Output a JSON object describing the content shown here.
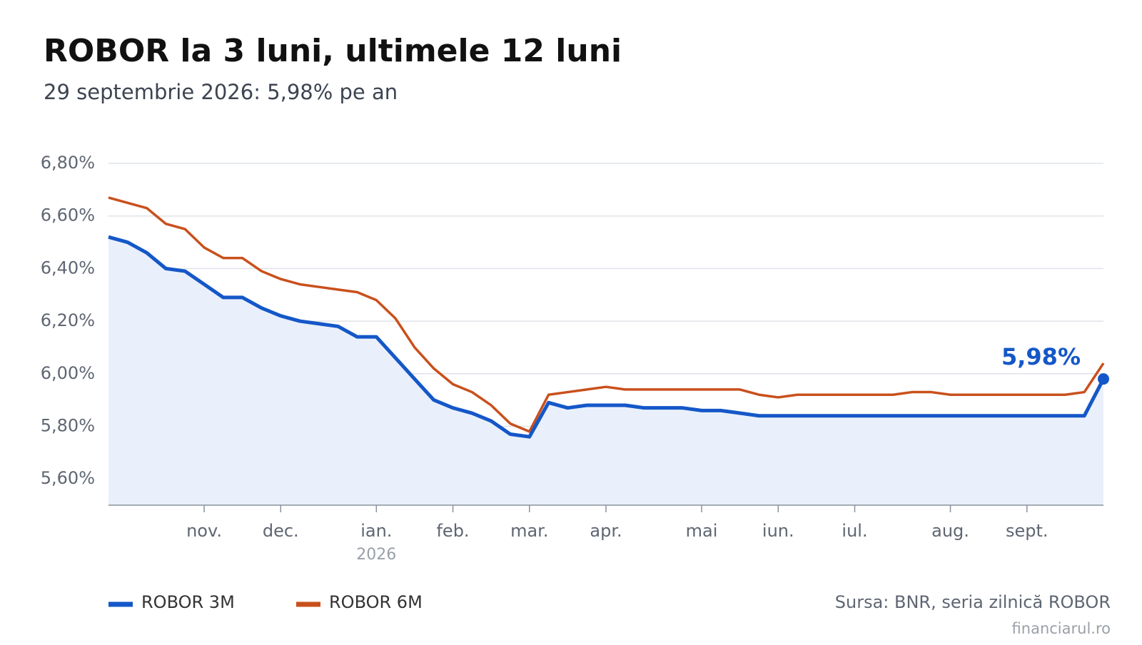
{
  "chart_data": {
    "type": "line",
    "title": "ROBOR la 3 luni, ultimele 12 luni",
    "subtitle": "29 septembrie 2026: 5,98% pe an",
    "source": "Sursa: BNR, seria zilnică ROBOR",
    "credit": "financiarul.ro",
    "year_label": "2026",
    "categories": [
      null,
      null,
      null,
      null,
      null,
      "nov.",
      null,
      null,
      null,
      "dec.",
      null,
      null,
      null,
      null,
      "ian.",
      null,
      null,
      null,
      "feb.",
      null,
      null,
      null,
      "mar.",
      null,
      null,
      null,
      "apr.",
      null,
      null,
      null,
      null,
      "mai",
      null,
      null,
      null,
      "iun.",
      null,
      null,
      null,
      "iul.",
      null,
      null,
      null,
      null,
      "aug.",
      null,
      null,
      null,
      "sept.",
      null,
      null,
      null,
      null
    ],
    "series": [
      {
        "name": "ROBOR 3M",
        "color": "#1457c8",
        "fill": "#e9f0fb",
        "values": [
          6.52,
          6.5,
          6.46,
          6.4,
          6.39,
          6.34,
          6.29,
          6.29,
          6.25,
          6.22,
          6.2,
          6.19,
          6.18,
          6.14,
          6.14,
          6.06,
          5.98,
          5.9,
          5.87,
          5.85,
          5.82,
          5.77,
          5.76,
          5.89,
          5.87,
          5.88,
          5.88,
          5.88,
          5.87,
          5.87,
          5.87,
          5.86,
          5.86,
          5.85,
          5.84,
          5.84,
          5.84,
          5.84,
          5.84,
          5.84,
          5.84,
          5.84,
          5.84,
          5.84,
          5.84,
          5.84,
          5.84,
          5.84,
          5.84,
          5.84,
          5.84,
          5.84,
          5.98
        ],
        "value_labels": [
          null,
          null,
          null,
          null,
          null,
          null,
          null,
          null,
          null,
          null,
          null,
          null,
          null,
          null,
          null,
          null,
          null,
          null,
          null,
          null,
          null,
          null,
          null,
          null,
          null,
          null,
          null,
          null,
          null,
          null,
          null,
          null,
          null,
          null,
          null,
          null,
          null,
          null,
          null,
          null,
          null,
          null,
          null,
          null,
          null,
          null,
          null,
          null,
          null,
          null,
          null,
          null,
          "5,98%"
        ]
      },
      {
        "name": "ROBOR 6M",
        "color": "#c9501c",
        "values": [
          6.67,
          6.65,
          6.63,
          6.57,
          6.55,
          6.48,
          6.44,
          6.44,
          6.39,
          6.36,
          6.34,
          6.33,
          6.32,
          6.31,
          6.28,
          6.21,
          6.1,
          6.02,
          5.96,
          5.93,
          5.88,
          5.81,
          5.78,
          5.92,
          5.93,
          5.94,
          5.95,
          5.94,
          5.94,
          5.94,
          5.94,
          5.94,
          5.94,
          5.94,
          5.92,
          5.91,
          5.92,
          5.92,
          5.92,
          5.92,
          5.92,
          5.92,
          5.93,
          5.93,
          5.92,
          5.92,
          5.92,
          5.92,
          5.92,
          5.92,
          5.92,
          5.93,
          6.04
        ]
      }
    ],
    "ylim": [
      5.5,
      6.8
    ],
    "yticks": [
      {
        "value": 5.6,
        "label": "5,60%"
      },
      {
        "value": 5.8,
        "label": "5,80%"
      },
      {
        "value": 6.0,
        "label": "6,00%"
      },
      {
        "value": 6.2,
        "label": "6,20%"
      },
      {
        "value": 6.4,
        "label": "6,40%"
      },
      {
        "value": 6.6,
        "label": "6,60%"
      },
      {
        "value": 6.8,
        "label": "6,80%"
      }
    ],
    "grid": true,
    "legend": "bottom-left"
  }
}
